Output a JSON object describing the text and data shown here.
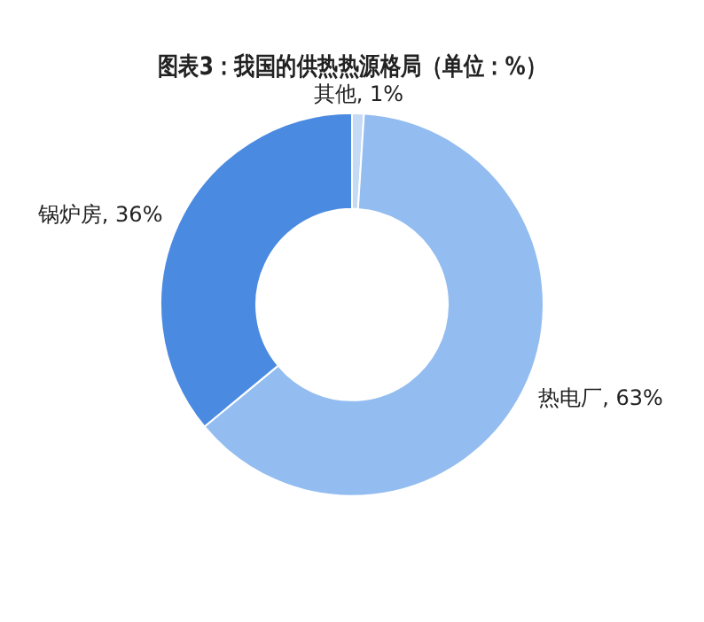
{
  "chart_data": {
    "type": "donut",
    "title": "图表3：我国的供热热源格局（单位：%）",
    "categories": [
      "其他",
      "热电厂",
      "锅炉房"
    ],
    "values": [
      1,
      63,
      36
    ],
    "value_labels": [
      "1%",
      "63%",
      "36%"
    ],
    "colors": [
      "#c5dbf5",
      "#93bdf0",
      "#4a8ae0"
    ],
    "legend": false
  }
}
